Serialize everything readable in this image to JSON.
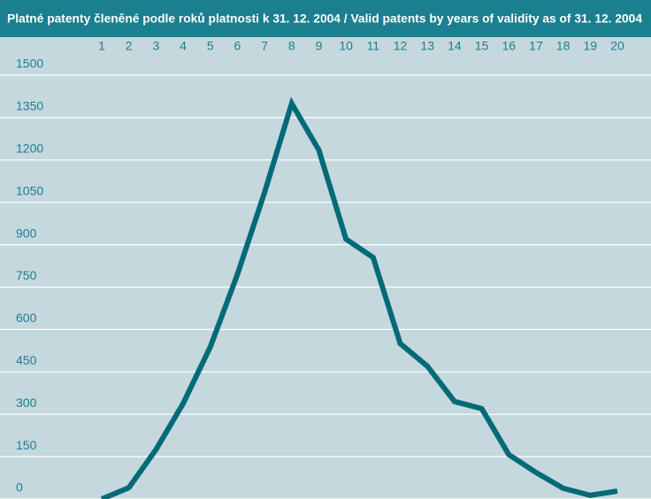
{
  "chart_data": {
    "type": "line",
    "title": "Platné patenty členěné podle roků platnosti k 31. 12. 2004 / Valid patents by years of validity as of 31. 12. 2004",
    "categories": [
      "1",
      "2",
      "3",
      "4",
      "5",
      "6",
      "7",
      "8",
      "9",
      "10",
      "11",
      "12",
      "13",
      "14",
      "15",
      "16",
      "17",
      "18",
      "19",
      "20"
    ],
    "series": [
      {
        "name": "Valid patents",
        "color": "#006b77",
        "values": [
          0,
          40,
          175,
          338,
          538,
          795,
          1085,
          1400,
          1235,
          920,
          855,
          550,
          470,
          345,
          320,
          157,
          94,
          38,
          13,
          28
        ]
      }
    ],
    "ylim": [
      0,
      1500
    ],
    "yticks": [
      0,
      150,
      300,
      450,
      600,
      750,
      900,
      1050,
      1200,
      1350,
      1500
    ],
    "grid": true
  }
}
